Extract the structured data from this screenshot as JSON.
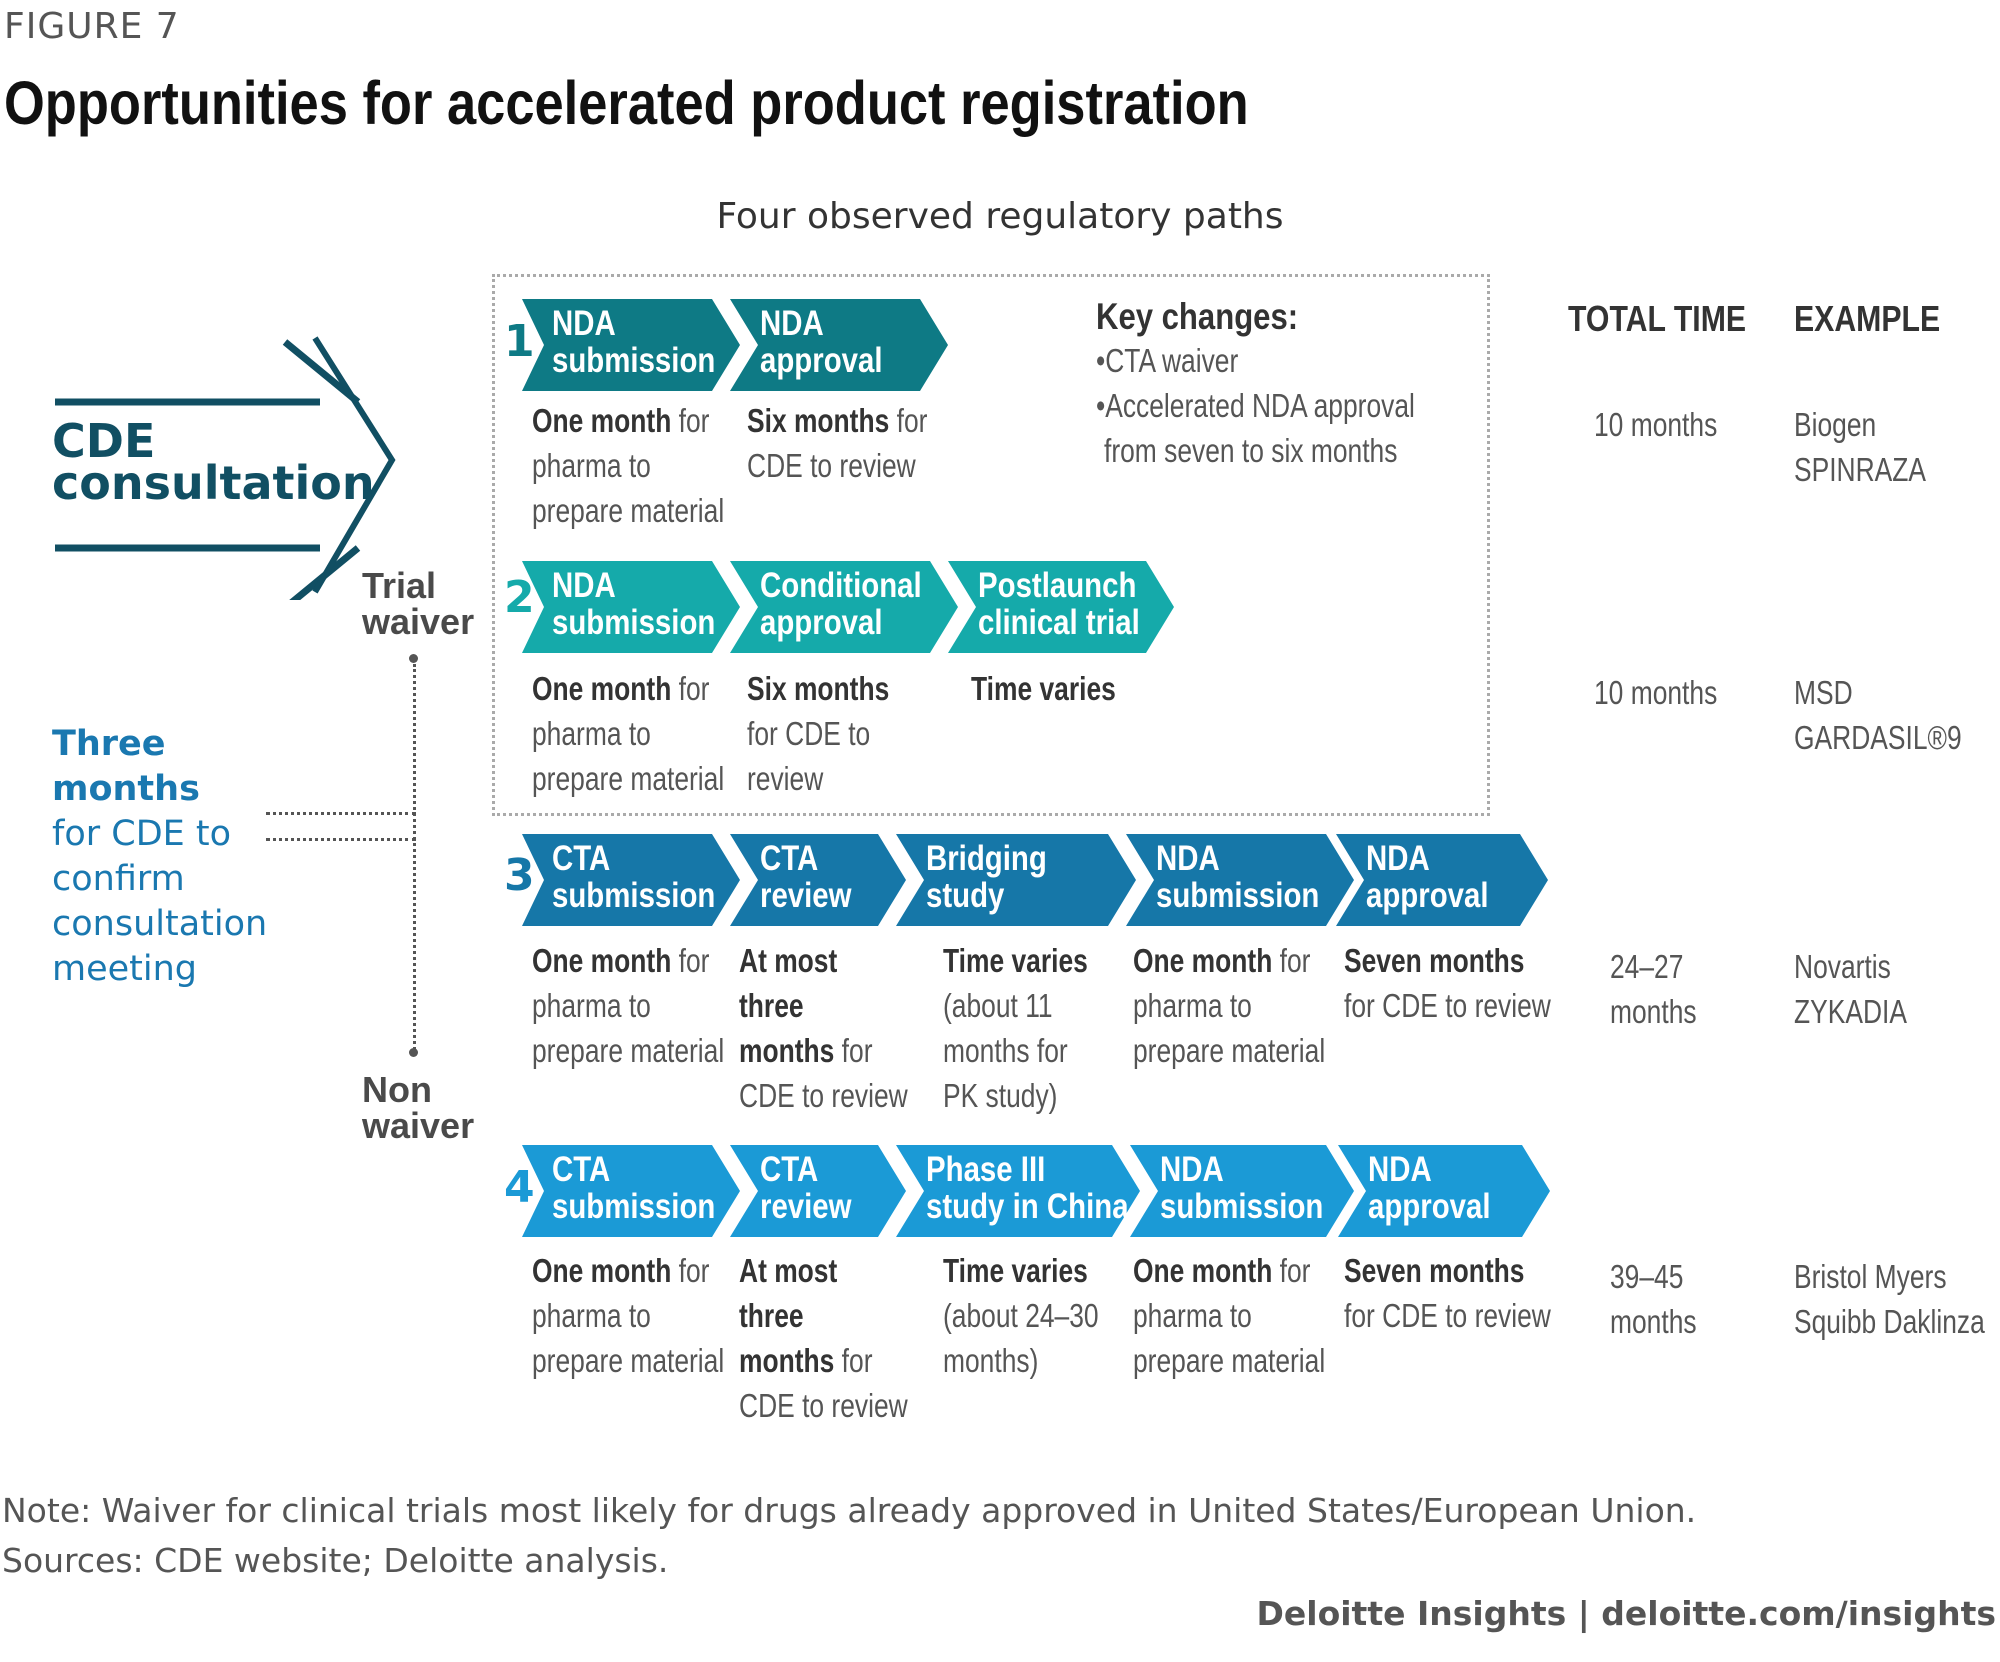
{
  "figure_label": "FIGURE 7",
  "title": "Opportunities for accelerated product registration",
  "subtitle": "Four observed regulatory paths",
  "cde": {
    "line1": "CDE",
    "line2": "consultation"
  },
  "trial_waiver": {
    "line1": "Trial",
    "line2": "waiver"
  },
  "non_waiver": {
    "line1": "Non",
    "line2": "waiver"
  },
  "three_months": {
    "line1": "Three months",
    "line2": "for CDE to",
    "line3": "confirm",
    "line4": "consultation",
    "line5": "meeting"
  },
  "columns": {
    "total_time": "TOTAL TIME",
    "example": "EXAMPLE"
  },
  "key_changes": {
    "title": "Key changes:",
    "items": [
      "•CTA waiver",
      "•Accelerated NDA approval",
      "from seven to six months"
    ]
  },
  "colors": {
    "path1": "#0e7a85",
    "path2": "#15aaaa",
    "path3": "#1677a8",
    "path4": "#1b9ad6",
    "dark_teal": "#114f63",
    "accent_blue": "#1a78b0"
  },
  "paths": [
    {
      "number": "1",
      "steps": [
        {
          "line1": "NDA",
          "line2": "submission",
          "desc_bold": "One month",
          "desc_rest": [
            "for",
            "pharma to",
            "prepare material"
          ]
        },
        {
          "line1": "NDA",
          "line2": "approval",
          "desc_bold": "Six months",
          "desc_rest": [
            "for",
            "CDE to review"
          ]
        }
      ],
      "total_time": [
        "10 months"
      ],
      "example": [
        "Biogen",
        "SPINRAZA"
      ]
    },
    {
      "number": "2",
      "steps": [
        {
          "line1": "NDA",
          "line2": "submission",
          "desc_bold": "One month",
          "desc_rest": [
            "for",
            "pharma to",
            "prepare material"
          ]
        },
        {
          "line1": "Conditional",
          "line2": "approval",
          "desc_bold": "Six months",
          "desc_rest": [
            "for CDE to",
            "review"
          ]
        },
        {
          "line1": "Postlaunch",
          "line2": "clinical trial",
          "desc_bold": "Time varies",
          "desc_rest": []
        }
      ],
      "total_time": [
        "10 months"
      ],
      "example": [
        "MSD",
        "GARDASIL®9"
      ]
    },
    {
      "number": "3",
      "steps": [
        {
          "line1": "CTA",
          "line2": "submission",
          "desc_bold": "One month",
          "desc_rest": [
            "for",
            "pharma to",
            "prepare material"
          ]
        },
        {
          "line1": "CTA",
          "line2": "review",
          "desc_bold": "At most",
          "desc_bold2": "three",
          "desc_bold3": "months",
          "desc_rest": [
            "for",
            "CDE to review"
          ]
        },
        {
          "line1": "Bridging",
          "line2": "study",
          "desc_bold": "Time varies",
          "desc_rest": [
            "(about 11",
            "months for",
            "PK study)"
          ]
        },
        {
          "line1": "NDA",
          "line2": "submission",
          "desc_bold": "One month",
          "desc_rest": [
            "for",
            "pharma to",
            "prepare material"
          ]
        },
        {
          "line1": "NDA",
          "line2": "approval",
          "desc_bold": "Seven months",
          "desc_rest": [
            "for CDE to review"
          ]
        }
      ],
      "total_time": [
        "24–27",
        "months"
      ],
      "example": [
        "Novartis",
        "ZYKADIA"
      ]
    },
    {
      "number": "4",
      "steps": [
        {
          "line1": "CTA",
          "line2": "submission",
          "desc_bold": "One month",
          "desc_rest": [
            "for",
            "pharma to",
            "prepare material"
          ]
        },
        {
          "line1": "CTA",
          "line2": "review",
          "desc_bold": "At most",
          "desc_bold2": "three",
          "desc_bold3": "months",
          "desc_rest": [
            "for",
            "CDE to review"
          ]
        },
        {
          "line1": "Phase III",
          "line2": "study in China",
          "desc_bold": "Time varies",
          "desc_rest": [
            "(about 24–30",
            "months)"
          ]
        },
        {
          "line1": "NDA",
          "line2": "submission",
          "desc_bold": "One month",
          "desc_rest": [
            "for",
            "pharma to",
            "prepare material"
          ]
        },
        {
          "line1": "NDA",
          "line2": "approval",
          "desc_bold": "Seven months",
          "desc_rest": [
            "for CDE to review"
          ]
        }
      ],
      "total_time": [
        "39–45",
        "months"
      ],
      "example": [
        "Bristol Myers",
        "Squibb Daklinza"
      ]
    }
  ],
  "note": "Note: Waiver for clinical trials most likely for drugs already approved in United States/European Union.",
  "sources": "Sources: CDE website; Deloitte analysis.",
  "brand": "Deloitte Insights | deloitte.com/insights"
}
